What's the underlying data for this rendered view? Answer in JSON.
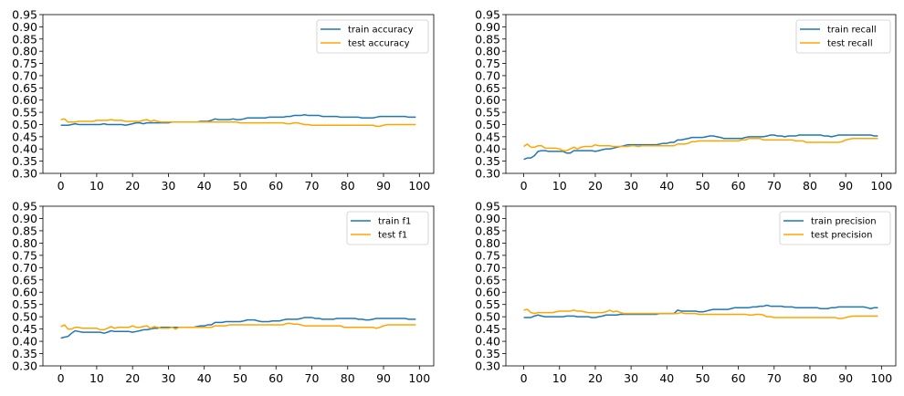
{
  "colors": {
    "train": "#1f77b4",
    "test": "#ffa500"
  },
  "chart_data": [
    {
      "type": "line",
      "title": "",
      "xlabel": "",
      "ylabel": "",
      "xlim": [
        -5,
        104
      ],
      "ylim": [
        0.3,
        0.95
      ],
      "xticks": [
        "0",
        "10",
        "20",
        "30",
        "40",
        "50",
        "60",
        "70",
        "80",
        "90",
        "100"
      ],
      "yticks": [
        "0.30",
        "0.35",
        "0.40",
        "0.45",
        "0.50",
        "0.55",
        "0.60",
        "0.65",
        "0.70",
        "0.75",
        "0.80",
        "0.85",
        "0.90",
        "0.95"
      ],
      "legend_position": "upper right",
      "grid": false,
      "series": [
        {
          "name": "train accuracy",
          "color": "#1f77b4",
          "values": [
            0.497,
            0.497,
            0.497,
            0.5,
            0.503,
            0.5,
            0.5,
            0.5,
            0.5,
            0.5,
            0.5,
            0.5,
            0.503,
            0.5,
            0.5,
            0.5,
            0.5,
            0.5,
            0.497,
            0.5,
            0.503,
            0.507,
            0.507,
            0.503,
            0.507,
            0.507,
            0.507,
            0.507,
            0.507,
            0.507,
            0.507,
            0.51,
            0.51,
            0.51,
            0.51,
            0.51,
            0.51,
            0.51,
            0.51,
            0.513,
            0.513,
            0.513,
            0.517,
            0.523,
            0.52,
            0.52,
            0.52,
            0.52,
            0.523,
            0.52,
            0.52,
            0.523,
            0.527,
            0.527,
            0.527,
            0.527,
            0.527,
            0.527,
            0.53,
            0.53,
            0.53,
            0.53,
            0.53,
            0.533,
            0.533,
            0.537,
            0.537,
            0.537,
            0.54,
            0.537,
            0.537,
            0.537,
            0.537,
            0.533,
            0.533,
            0.533,
            0.533,
            0.533,
            0.53,
            0.53,
            0.53,
            0.53,
            0.53,
            0.53,
            0.527,
            0.527,
            0.527,
            0.527,
            0.53,
            0.533,
            0.533,
            0.533,
            0.533,
            0.533,
            0.533,
            0.533,
            0.533,
            0.53,
            0.53,
            0.53
          ]
        },
        {
          "name": "test accuracy",
          "color": "#ffa500",
          "values": [
            0.52,
            0.523,
            0.51,
            0.51,
            0.51,
            0.513,
            0.513,
            0.513,
            0.513,
            0.513,
            0.517,
            0.517,
            0.517,
            0.517,
            0.52,
            0.517,
            0.517,
            0.517,
            0.513,
            0.513,
            0.513,
            0.513,
            0.513,
            0.517,
            0.52,
            0.513,
            0.517,
            0.513,
            0.51,
            0.51,
            0.51,
            0.51,
            0.51,
            0.51,
            0.51,
            0.51,
            0.51,
            0.51,
            0.51,
            0.51,
            0.51,
            0.51,
            0.51,
            0.51,
            0.51,
            0.51,
            0.51,
            0.51,
            0.51,
            0.51,
            0.507,
            0.507,
            0.507,
            0.507,
            0.507,
            0.507,
            0.507,
            0.507,
            0.507,
            0.507,
            0.507,
            0.507,
            0.507,
            0.503,
            0.503,
            0.507,
            0.507,
            0.503,
            0.5,
            0.5,
            0.497,
            0.497,
            0.497,
            0.497,
            0.497,
            0.497,
            0.497,
            0.497,
            0.497,
            0.497,
            0.497,
            0.497,
            0.497,
            0.497,
            0.497,
            0.497,
            0.497,
            0.497,
            0.493,
            0.493,
            0.497,
            0.5,
            0.5,
            0.5,
            0.5,
            0.5,
            0.5,
            0.5,
            0.5,
            0.5
          ]
        }
      ]
    },
    {
      "type": "line",
      "title": "",
      "xlabel": "",
      "ylabel": "",
      "xlim": [
        -5,
        104
      ],
      "ylim": [
        0.3,
        0.95
      ],
      "xticks": [
        "0",
        "10",
        "20",
        "30",
        "40",
        "50",
        "60",
        "70",
        "80",
        "90",
        "100"
      ],
      "yticks": [
        "0.30",
        "0.35",
        "0.40",
        "0.45",
        "0.50",
        "0.55",
        "0.60",
        "0.65",
        "0.70",
        "0.75",
        "0.80",
        "0.85",
        "0.90",
        "0.95"
      ],
      "legend_position": "upper right",
      "grid": false,
      "series": [
        {
          "name": "train recall",
          "color": "#1f77b4",
          "values": [
            0.357,
            0.363,
            0.363,
            0.373,
            0.39,
            0.393,
            0.393,
            0.39,
            0.39,
            0.39,
            0.39,
            0.39,
            0.383,
            0.383,
            0.393,
            0.393,
            0.393,
            0.393,
            0.393,
            0.393,
            0.39,
            0.393,
            0.397,
            0.4,
            0.4,
            0.403,
            0.407,
            0.41,
            0.413,
            0.417,
            0.417,
            0.417,
            0.417,
            0.417,
            0.417,
            0.417,
            0.417,
            0.417,
            0.42,
            0.423,
            0.423,
            0.427,
            0.427,
            0.437,
            0.437,
            0.44,
            0.443,
            0.447,
            0.447,
            0.447,
            0.447,
            0.45,
            0.453,
            0.453,
            0.45,
            0.447,
            0.443,
            0.443,
            0.443,
            0.443,
            0.443,
            0.443,
            0.447,
            0.45,
            0.45,
            0.45,
            0.45,
            0.45,
            0.453,
            0.457,
            0.457,
            0.453,
            0.453,
            0.45,
            0.453,
            0.453,
            0.453,
            0.457,
            0.457,
            0.457,
            0.457,
            0.457,
            0.457,
            0.457,
            0.453,
            0.453,
            0.45,
            0.453,
            0.457,
            0.457,
            0.457,
            0.457,
            0.457,
            0.457,
            0.457,
            0.457,
            0.457,
            0.457,
            0.453,
            0.453
          ]
        },
        {
          "name": "test recall",
          "color": "#ffa500",
          "values": [
            0.41,
            0.42,
            0.407,
            0.407,
            0.413,
            0.413,
            0.403,
            0.403,
            0.403,
            0.403,
            0.4,
            0.393,
            0.393,
            0.4,
            0.407,
            0.4,
            0.407,
            0.41,
            0.41,
            0.41,
            0.417,
            0.413,
            0.413,
            0.413,
            0.413,
            0.41,
            0.41,
            0.41,
            0.41,
            0.41,
            0.413,
            0.413,
            0.41,
            0.413,
            0.413,
            0.413,
            0.413,
            0.413,
            0.413,
            0.413,
            0.413,
            0.413,
            0.413,
            0.42,
            0.42,
            0.42,
            0.423,
            0.43,
            0.43,
            0.433,
            0.433,
            0.433,
            0.433,
            0.433,
            0.433,
            0.433,
            0.433,
            0.433,
            0.433,
            0.433,
            0.433,
            0.437,
            0.437,
            0.443,
            0.443,
            0.443,
            0.443,
            0.437,
            0.437,
            0.437,
            0.437,
            0.437,
            0.437,
            0.437,
            0.437,
            0.437,
            0.433,
            0.433,
            0.433,
            0.427,
            0.427,
            0.427,
            0.427,
            0.427,
            0.427,
            0.427,
            0.427,
            0.427,
            0.427,
            0.43,
            0.437,
            0.44,
            0.443,
            0.443,
            0.443,
            0.443,
            0.443,
            0.443,
            0.443,
            0.443
          ]
        }
      ]
    },
    {
      "type": "line",
      "title": "",
      "xlabel": "",
      "ylabel": "",
      "xlim": [
        -5,
        104
      ],
      "ylim": [
        0.3,
        0.95
      ],
      "xticks": [
        "0",
        "10",
        "20",
        "30",
        "40",
        "50",
        "60",
        "70",
        "80",
        "90",
        "100"
      ],
      "yticks": [
        "0.30",
        "0.35",
        "0.40",
        "0.45",
        "0.50",
        "0.55",
        "0.60",
        "0.65",
        "0.70",
        "0.75",
        "0.80",
        "0.85",
        "0.90",
        "0.95"
      ],
      "legend_position": "upper right",
      "grid": false,
      "series": [
        {
          "name": "train f1",
          "color": "#1f77b4",
          "values": [
            0.413,
            0.417,
            0.42,
            0.433,
            0.443,
            0.44,
            0.437,
            0.437,
            0.437,
            0.437,
            0.437,
            0.437,
            0.433,
            0.437,
            0.443,
            0.44,
            0.44,
            0.44,
            0.44,
            0.44,
            0.437,
            0.44,
            0.443,
            0.447,
            0.447,
            0.45,
            0.453,
            0.453,
            0.457,
            0.457,
            0.457,
            0.457,
            0.457,
            0.457,
            0.457,
            0.457,
            0.457,
            0.457,
            0.46,
            0.463,
            0.463,
            0.467,
            0.467,
            0.477,
            0.477,
            0.477,
            0.48,
            0.48,
            0.48,
            0.48,
            0.48,
            0.483,
            0.487,
            0.487,
            0.487,
            0.483,
            0.48,
            0.48,
            0.48,
            0.483,
            0.483,
            0.483,
            0.487,
            0.49,
            0.49,
            0.49,
            0.49,
            0.493,
            0.497,
            0.497,
            0.497,
            0.493,
            0.493,
            0.49,
            0.49,
            0.49,
            0.49,
            0.493,
            0.493,
            0.493,
            0.493,
            0.493,
            0.493,
            0.49,
            0.49,
            0.487,
            0.487,
            0.49,
            0.493,
            0.493,
            0.493,
            0.493,
            0.493,
            0.493,
            0.493,
            0.493,
            0.493,
            0.49,
            0.49,
            0.49
          ]
        },
        {
          "name": "test f1",
          "color": "#ffa500",
          "values": [
            0.46,
            0.467,
            0.45,
            0.45,
            0.457,
            0.457,
            0.453,
            0.453,
            0.453,
            0.453,
            0.453,
            0.447,
            0.447,
            0.453,
            0.46,
            0.453,
            0.457,
            0.457,
            0.457,
            0.457,
            0.463,
            0.457,
            0.457,
            0.46,
            0.463,
            0.453,
            0.46,
            0.457,
            0.453,
            0.453,
            0.453,
            0.457,
            0.45,
            0.457,
            0.457,
            0.457,
            0.457,
            0.457,
            0.457,
            0.457,
            0.457,
            0.457,
            0.457,
            0.463,
            0.463,
            0.463,
            0.463,
            0.467,
            0.467,
            0.467,
            0.467,
            0.467,
            0.467,
            0.467,
            0.467,
            0.467,
            0.467,
            0.467,
            0.467,
            0.467,
            0.467,
            0.467,
            0.467,
            0.473,
            0.473,
            0.47,
            0.47,
            0.467,
            0.463,
            0.463,
            0.463,
            0.463,
            0.463,
            0.463,
            0.463,
            0.463,
            0.463,
            0.463,
            0.463,
            0.457,
            0.457,
            0.457,
            0.457,
            0.457,
            0.457,
            0.457,
            0.457,
            0.457,
            0.453,
            0.457,
            0.463,
            0.467,
            0.467,
            0.467,
            0.467,
            0.467,
            0.467,
            0.467,
            0.467,
            0.467
          ]
        }
      ]
    },
    {
      "type": "line",
      "title": "",
      "xlabel": "",
      "ylabel": "",
      "xlim": [
        -5,
        104
      ],
      "ylim": [
        0.3,
        0.95
      ],
      "xticks": [
        "0",
        "10",
        "20",
        "30",
        "40",
        "50",
        "60",
        "70",
        "80",
        "90",
        "100"
      ],
      "yticks": [
        "0.30",
        "0.35",
        "0.40",
        "0.45",
        "0.50",
        "0.55",
        "0.60",
        "0.65",
        "0.70",
        "0.75",
        "0.80",
        "0.85",
        "0.90",
        "0.95"
      ],
      "legend_position": "upper right",
      "grid": false,
      "series": [
        {
          "name": "train precision",
          "color": "#1f77b4",
          "values": [
            0.497,
            0.497,
            0.497,
            0.503,
            0.507,
            0.503,
            0.5,
            0.5,
            0.5,
            0.5,
            0.5,
            0.5,
            0.503,
            0.503,
            0.503,
            0.5,
            0.5,
            0.5,
            0.5,
            0.497,
            0.497,
            0.5,
            0.503,
            0.507,
            0.507,
            0.507,
            0.507,
            0.51,
            0.51,
            0.51,
            0.51,
            0.51,
            0.51,
            0.51,
            0.51,
            0.51,
            0.51,
            0.51,
            0.513,
            0.513,
            0.513,
            0.513,
            0.513,
            0.527,
            0.523,
            0.523,
            0.523,
            0.523,
            0.523,
            0.52,
            0.52,
            0.523,
            0.527,
            0.53,
            0.53,
            0.53,
            0.53,
            0.53,
            0.533,
            0.537,
            0.537,
            0.537,
            0.537,
            0.537,
            0.54,
            0.54,
            0.543,
            0.543,
            0.547,
            0.543,
            0.543,
            0.543,
            0.543,
            0.54,
            0.54,
            0.54,
            0.537,
            0.537,
            0.537,
            0.537,
            0.537,
            0.537,
            0.537,
            0.533,
            0.533,
            0.533,
            0.537,
            0.537,
            0.54,
            0.54,
            0.54,
            0.54,
            0.54,
            0.54,
            0.54,
            0.54,
            0.537,
            0.533,
            0.537,
            0.537
          ]
        },
        {
          "name": "test precision",
          "color": "#ffa500",
          "values": [
            0.527,
            0.53,
            0.517,
            0.513,
            0.517,
            0.517,
            0.517,
            0.517,
            0.517,
            0.52,
            0.523,
            0.523,
            0.523,
            0.523,
            0.527,
            0.523,
            0.523,
            0.52,
            0.517,
            0.517,
            0.517,
            0.517,
            0.517,
            0.52,
            0.527,
            0.52,
            0.523,
            0.517,
            0.513,
            0.513,
            0.513,
            0.513,
            0.513,
            0.513,
            0.513,
            0.513,
            0.513,
            0.513,
            0.513,
            0.513,
            0.513,
            0.513,
            0.513,
            0.513,
            0.517,
            0.513,
            0.513,
            0.513,
            0.513,
            0.51,
            0.51,
            0.51,
            0.51,
            0.51,
            0.51,
            0.51,
            0.51,
            0.51,
            0.51,
            0.51,
            0.51,
            0.51,
            0.51,
            0.507,
            0.507,
            0.51,
            0.51,
            0.507,
            0.5,
            0.5,
            0.497,
            0.497,
            0.497,
            0.497,
            0.497,
            0.497,
            0.497,
            0.497,
            0.497,
            0.497,
            0.497,
            0.497,
            0.497,
            0.497,
            0.497,
            0.497,
            0.497,
            0.497,
            0.493,
            0.493,
            0.497,
            0.5,
            0.503,
            0.503,
            0.503,
            0.503,
            0.503,
            0.503,
            0.503,
            0.503
          ]
        }
      ]
    }
  ]
}
